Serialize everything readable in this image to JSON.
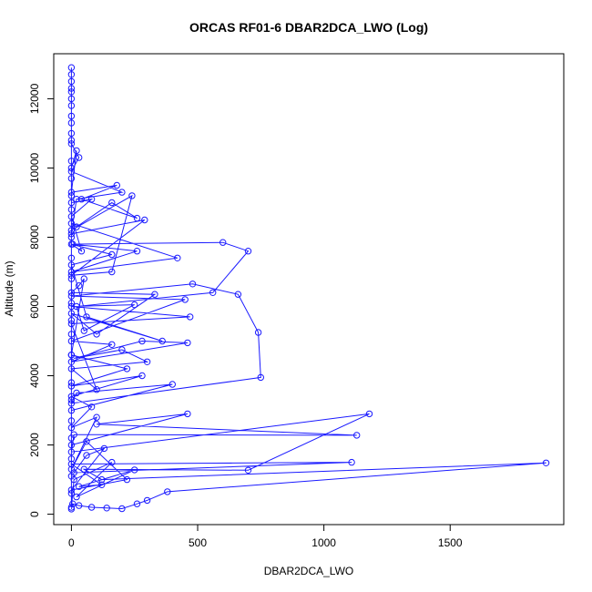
{
  "chart_data": {
    "type": "scatter",
    "title": "ORCAS RF01-6 DBAR2DCA_LWO (Log)",
    "xlabel": "DBAR2DCA_LWO",
    "ylabel": "Altitude (m)",
    "xlim": [
      -70,
      1950
    ],
    "ylim": [
      -300,
      13300
    ],
    "xticks": [
      0,
      500,
      1000,
      1500
    ],
    "yticks": [
      0,
      2000,
      4000,
      6000,
      8000,
      10000,
      12000
    ],
    "grid": false,
    "colors": {
      "series": "#1a1aff",
      "axis": "#000000"
    },
    "series": [
      {
        "connected": true,
        "points": [
          [
            0,
            150
          ],
          [
            5,
            300
          ],
          [
            30,
            250
          ],
          [
            80,
            200
          ],
          [
            140,
            180
          ],
          [
            200,
            160
          ],
          [
            260,
            300
          ],
          [
            300,
            400
          ],
          [
            380,
            650
          ],
          [
            1880,
            1480
          ],
          [
            120,
            1000
          ],
          [
            50,
            1300
          ],
          [
            700,
            1270
          ],
          [
            1180,
            2900
          ],
          [
            0,
            1800
          ],
          [
            10,
            2300
          ],
          [
            1130,
            2280
          ],
          [
            100,
            2600
          ],
          [
            460,
            2900
          ],
          [
            0,
            2000
          ],
          [
            0,
            3000
          ],
          [
            400,
            3750
          ],
          [
            20,
            3500
          ],
          [
            0,
            3200
          ],
          [
            750,
            3950
          ],
          [
            740,
            5250
          ],
          [
            660,
            6350
          ],
          [
            480,
            6650
          ],
          [
            0,
            6300
          ],
          [
            450,
            6200
          ],
          [
            0,
            5000
          ],
          [
            160,
            4900
          ],
          [
            0,
            4400
          ],
          [
            460,
            4950
          ],
          [
            280,
            5000
          ],
          [
            10,
            4500
          ],
          [
            200,
            4750
          ],
          [
            300,
            4400
          ],
          [
            0,
            4200
          ],
          [
            100,
            3600
          ],
          [
            0,
            5500
          ],
          [
            470,
            5700
          ],
          [
            0,
            6000
          ],
          [
            250,
            6050
          ],
          [
            50,
            5300
          ],
          [
            20,
            6000
          ],
          [
            560,
            6400
          ],
          [
            700,
            7600
          ],
          [
            600,
            7850
          ],
          [
            5,
            7800
          ],
          [
            260,
            7600
          ],
          [
            0,
            7000
          ],
          [
            420,
            7400
          ],
          [
            0,
            8400
          ],
          [
            20,
            8300
          ],
          [
            160,
            9000
          ],
          [
            260,
            8550
          ],
          [
            40,
            9100
          ],
          [
            180,
            9500
          ],
          [
            0,
            9300
          ],
          [
            20,
            10500
          ],
          [
            0,
            10000
          ],
          [
            0,
            11000
          ],
          [
            0,
            12000
          ],
          [
            0,
            12500
          ],
          [
            0,
            12900
          ],
          [
            0,
            12200
          ],
          [
            0,
            11500
          ],
          [
            0,
            10800
          ],
          [
            0,
            10200
          ],
          [
            0,
            9700
          ],
          [
            0,
            9200
          ],
          [
            0,
            8800
          ],
          [
            0,
            8000
          ],
          [
            0,
            7400
          ],
          [
            0,
            6800
          ],
          [
            0,
            6100
          ],
          [
            0,
            5600
          ],
          [
            0,
            5200
          ],
          [
            0,
            4600
          ],
          [
            0,
            3800
          ],
          [
            0,
            3300
          ],
          [
            0,
            2700
          ],
          [
            0,
            2200
          ],
          [
            0,
            1600
          ],
          [
            0,
            1100
          ],
          [
            0,
            600
          ],
          [
            0,
            200
          ],
          [
            10,
            1000
          ],
          [
            160,
            1500
          ],
          [
            20,
            500
          ],
          [
            250,
            1280
          ],
          [
            30,
            800
          ],
          [
            120,
            850
          ],
          [
            0,
            1450
          ],
          [
            1110,
            1500
          ],
          [
            10,
            1200
          ],
          [
            60,
            1700
          ],
          [
            130,
            1900
          ],
          [
            0,
            700
          ],
          [
            220,
            1000
          ],
          [
            60,
            2100
          ],
          [
            0,
            1300
          ],
          [
            100,
            2800
          ],
          [
            0,
            2500
          ],
          [
            80,
            3100
          ],
          [
            0,
            3400
          ],
          [
            280,
            4000
          ],
          [
            0,
            3700
          ],
          [
            220,
            4200
          ],
          [
            0,
            4600
          ],
          [
            50,
            6800
          ],
          [
            30,
            6600
          ],
          [
            0,
            6400
          ],
          [
            330,
            6350
          ],
          [
            100,
            5200
          ],
          [
            0,
            5800
          ],
          [
            360,
            5000
          ],
          [
            60,
            5700
          ],
          [
            0,
            7200
          ],
          [
            160,
            7500
          ],
          [
            0,
            7800
          ],
          [
            40,
            7600
          ],
          [
            0,
            8600
          ],
          [
            80,
            9100
          ],
          [
            0,
            9000
          ],
          [
            0,
            8200
          ],
          [
            240,
            9200
          ],
          [
            160,
            7000
          ],
          [
            0,
            6900
          ],
          [
            290,
            8500
          ],
          [
            0,
            8100
          ],
          [
            20,
            9100
          ],
          [
            200,
            9300
          ],
          [
            0,
            9900
          ],
          [
            30,
            10300
          ],
          [
            0,
            10700
          ],
          [
            0,
            11300
          ],
          [
            0,
            11800
          ],
          [
            0,
            12300
          ],
          [
            0,
            12700
          ]
        ]
      }
    ]
  }
}
